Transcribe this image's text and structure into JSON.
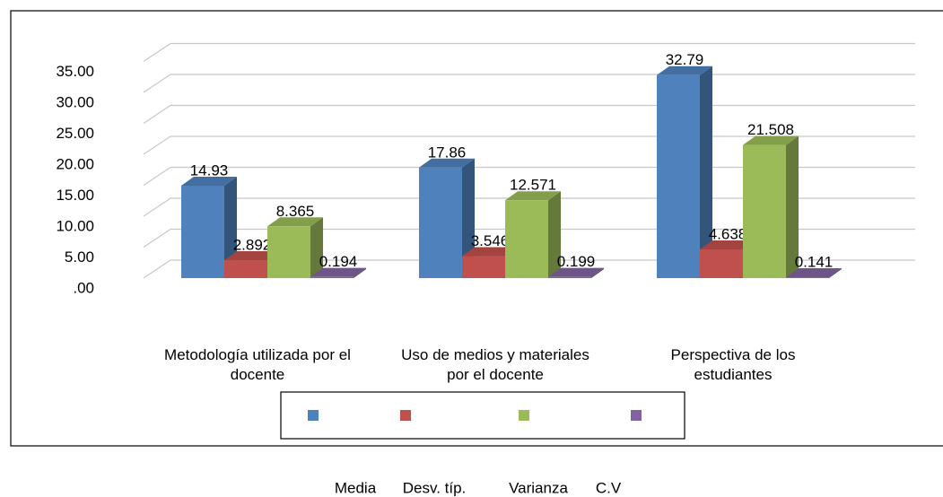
{
  "chart_data": {
    "type": "bar3d",
    "categories": [
      "Metodología utilizada por el docente",
      "Uso de medios y materiales por el docente",
      "Perspectiva de los estudiantes"
    ],
    "series": [
      {
        "name": "Media",
        "color": "#4f81bd",
        "values": [
          14.93,
          17.86,
          32.79
        ]
      },
      {
        "name": "Desv. típ.",
        "color": "#c0504d",
        "values": [
          2.892,
          3.546,
          4.638
        ]
      },
      {
        "name": "Varianza",
        "color": "#9bbb59",
        "values": [
          8.365,
          12.571,
          21.508
        ]
      },
      {
        "name": "C.V",
        "color": "#8064a2",
        "values": [
          0.194,
          0.199,
          0.141
        ]
      }
    ],
    "ylim": [
      0,
      40
    ],
    "yticks": [
      {
        "value": 0,
        "label": ".00"
      },
      {
        "value": 5,
        "label": "5.00"
      },
      {
        "value": 10,
        "label": "10.00"
      },
      {
        "value": 15,
        "label": "15.00"
      },
      {
        "value": 20,
        "label": "20.00"
      },
      {
        "value": 25,
        "label": "25.00"
      },
      {
        "value": 30,
        "label": "30.00"
      },
      {
        "value": 35,
        "label": "35.00"
      }
    ],
    "grid": true
  }
}
